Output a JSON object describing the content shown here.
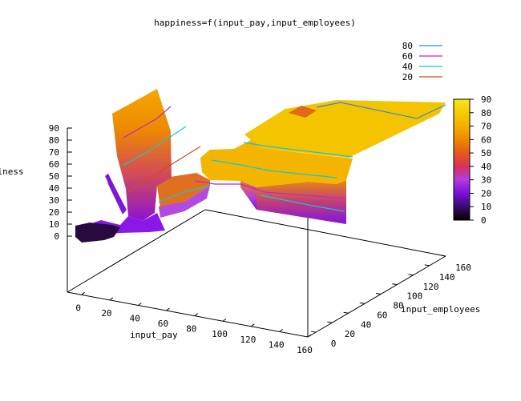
{
  "chart_data": {
    "type": "surface3d",
    "title": "happiness=f(input_pay,input_employees)",
    "xlabel": "input_pay",
    "ylabel": "input_employees",
    "zlabel": "happiness",
    "x_ticks": [
      "0",
      "20",
      "40",
      "60",
      "80",
      "100",
      "120",
      "140",
      "160"
    ],
    "y_ticks": [
      "0",
      "20",
      "40",
      "60",
      "80",
      "100",
      "120",
      "140",
      "160"
    ],
    "z_ticks": [
      "0",
      "10",
      "20",
      "30",
      "40",
      "50",
      "60",
      "70",
      "80",
      "90"
    ],
    "xlim": [
      -10,
      160
    ],
    "ylim": [
      -10,
      160
    ],
    "zlim": [
      0,
      90
    ],
    "colorbar_ticks": [
      "0",
      "10",
      "20",
      "30",
      "40",
      "50",
      "60",
      "70",
      "80",
      "90"
    ],
    "colorbar_range": [
      0,
      90
    ],
    "colormap": [
      "#000000",
      "#3a0a6e",
      "#7a10d8",
      "#b23ce0",
      "#d8325a",
      "#e65a1a",
      "#ee8a00",
      "#f3b000",
      "#f5cc00",
      "#f8e41e"
    ],
    "contour_legend": [
      {
        "level": "80",
        "color": "#2b8fd6"
      },
      {
        "level": "60",
        "color": "#c026c8"
      },
      {
        "level": "40",
        "color": "#11c7d8"
      },
      {
        "level": "20",
        "color": "#d44a1a"
      }
    ],
    "grid": false,
    "legend_position": "top-right"
  }
}
